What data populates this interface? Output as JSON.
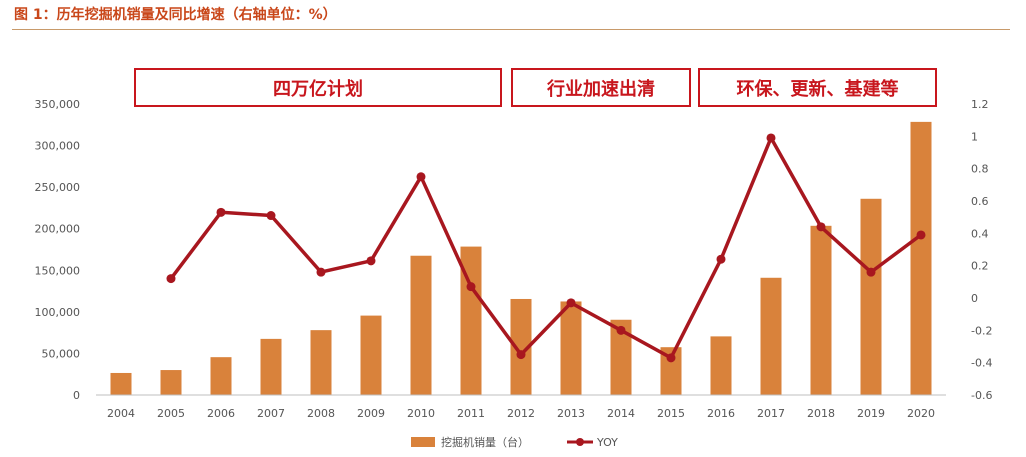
{
  "title": "图 1：历年挖掘机销量及同比增速（右轴单位：%）",
  "chart_data": {
    "type": "bar",
    "title": "图 1：历年挖掘机销量及同比增速（右轴单位：%）",
    "categories": [
      "2004",
      "2005",
      "2006",
      "2007",
      "2008",
      "2009",
      "2010",
      "2011",
      "2012",
      "2013",
      "2014",
      "2015",
      "2016",
      "2017",
      "2018",
      "2019",
      "2020"
    ],
    "series": [
      {
        "name": "挖掘机销量（台）",
        "type": "bar",
        "axis": "left",
        "color": "#d9823b",
        "values": [
          26500,
          30000,
          45500,
          67500,
          78000,
          95500,
          167500,
          178500,
          115500,
          112500,
          90500,
          57500,
          70500,
          141000,
          203500,
          236000,
          328500
        ]
      },
      {
        "name": "YOY",
        "type": "line",
        "axis": "right",
        "color": "#a8171f",
        "values": [
          null,
          0.12,
          0.53,
          0.51,
          0.16,
          0.23,
          0.75,
          0.07,
          -0.35,
          -0.03,
          -0.2,
          -0.37,
          0.24,
          0.99,
          0.44,
          0.16,
          0.39
        ]
      }
    ],
    "left_axis": {
      "ylim": [
        0,
        350000
      ],
      "ticks": [
        "0",
        "50,000",
        "100,000",
        "150,000",
        "200,000",
        "250,000",
        "300,000",
        "350,000"
      ]
    },
    "right_axis": {
      "ylim": [
        -0.6,
        1.2
      ],
      "ticks": [
        "-0.6",
        "-0.4",
        "-0.2",
        "0",
        "0.2",
        "0.4",
        "0.6",
        "0.8",
        "1",
        "1.2"
      ]
    },
    "periods": [
      {
        "label": "四万亿计划",
        "from": "2006",
        "to": "2011"
      },
      {
        "label": "行业加速出清",
        "from": "2012",
        "to": "2015"
      },
      {
        "label": "环保、更新、基建等",
        "from": "2016",
        "to": "2020"
      }
    ],
    "grid": false,
    "legend": "bottom-center"
  }
}
